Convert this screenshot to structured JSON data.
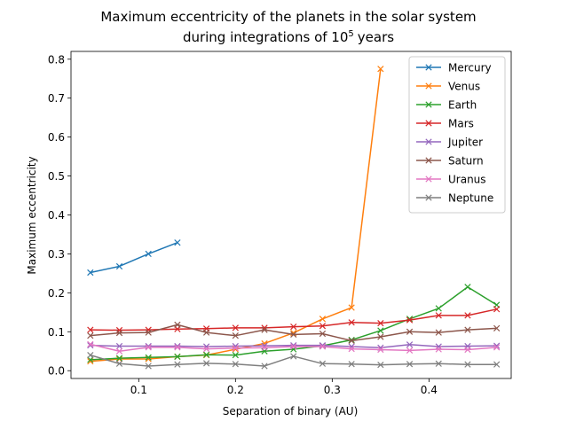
{
  "chart_data": {
    "type": "line",
    "title": "Maximum eccentricity of the planets in the solar system",
    "title_line2_prefix": "during integrations of 10",
    "title_line2_exponent": "5",
    "title_line2_suffix": "years",
    "xlabel": "Separation of binary (AU)",
    "ylabel": "Maximum eccentricity",
    "xlim": [
      0.03,
      0.485
    ],
    "ylim": [
      -0.02,
      0.82
    ],
    "xticks": [
      0.1,
      0.2,
      0.3,
      0.4
    ],
    "xtick_labels": [
      "0.1",
      "0.2",
      "0.3",
      "0.4"
    ],
    "yticks": [
      0.0,
      0.1,
      0.2,
      0.3,
      0.4,
      0.5,
      0.6,
      0.7,
      0.8
    ],
    "ytick_labels": [
      "0.0",
      "0.1",
      "0.2",
      "0.3",
      "0.4",
      "0.5",
      "0.6",
      "0.7",
      "0.8"
    ],
    "grid": false,
    "legend_position": "top-right",
    "marker": "x",
    "series": [
      {
        "name": "Mercury",
        "color": "#1f77b4",
        "x": [
          0.05,
          0.08,
          0.11,
          0.14
        ],
        "y": [
          0.252,
          0.268,
          0.3,
          0.329
        ]
      },
      {
        "name": "Venus",
        "color": "#ff7f0e",
        "x": [
          0.05,
          0.08,
          0.11,
          0.14,
          0.17,
          0.2,
          0.23,
          0.26,
          0.29,
          0.32,
          0.35
        ],
        "y": [
          0.024,
          0.03,
          0.03,
          0.036,
          0.04,
          0.055,
          0.07,
          0.097,
          0.133,
          0.162,
          0.775
        ]
      },
      {
        "name": "Earth",
        "color": "#2ca02c",
        "x": [
          0.05,
          0.08,
          0.11,
          0.14,
          0.17,
          0.2,
          0.23,
          0.26,
          0.29,
          0.32,
          0.35,
          0.38,
          0.41,
          0.44,
          0.47
        ],
        "y": [
          0.028,
          0.032,
          0.034,
          0.036,
          0.041,
          0.04,
          0.05,
          0.055,
          0.064,
          0.079,
          0.103,
          0.133,
          0.16,
          0.215,
          0.169
        ]
      },
      {
        "name": "Mars",
        "color": "#d62728",
        "x": [
          0.05,
          0.08,
          0.11,
          0.14,
          0.17,
          0.2,
          0.23,
          0.26,
          0.29,
          0.32,
          0.35,
          0.38,
          0.41,
          0.44,
          0.47
        ],
        "y": [
          0.105,
          0.104,
          0.105,
          0.107,
          0.108,
          0.11,
          0.11,
          0.113,
          0.115,
          0.124,
          0.122,
          0.13,
          0.142,
          0.142,
          0.158
        ]
      },
      {
        "name": "Jupiter",
        "color": "#9467bd",
        "x": [
          0.05,
          0.08,
          0.11,
          0.14,
          0.17,
          0.2,
          0.23,
          0.26,
          0.29,
          0.32,
          0.35,
          0.38,
          0.41,
          0.44,
          0.47
        ],
        "y": [
          0.065,
          0.063,
          0.063,
          0.063,
          0.062,
          0.063,
          0.064,
          0.065,
          0.065,
          0.062,
          0.059,
          0.067,
          0.062,
          0.063,
          0.064
        ]
      },
      {
        "name": "Saturn",
        "color": "#8c564b",
        "x": [
          0.05,
          0.08,
          0.11,
          0.14,
          0.17,
          0.2,
          0.23,
          0.26,
          0.29,
          0.32,
          0.35,
          0.38,
          0.41,
          0.44,
          0.47
        ],
        "y": [
          0.09,
          0.097,
          0.098,
          0.118,
          0.098,
          0.09,
          0.105,
          0.093,
          0.095,
          0.077,
          0.087,
          0.1,
          0.098,
          0.105,
          0.109
        ]
      },
      {
        "name": "Uranus",
        "color": "#e377c2",
        "x": [
          0.05,
          0.08,
          0.11,
          0.14,
          0.17,
          0.2,
          0.23,
          0.26,
          0.29,
          0.32,
          0.35,
          0.38,
          0.41,
          0.44,
          0.47
        ],
        "y": [
          0.068,
          0.05,
          0.06,
          0.06,
          0.056,
          0.058,
          0.059,
          0.062,
          0.062,
          0.056,
          0.054,
          0.052,
          0.055,
          0.054,
          0.06
        ]
      },
      {
        "name": "Neptune",
        "color": "#7f7f7f",
        "x": [
          0.05,
          0.08,
          0.11,
          0.14,
          0.17,
          0.2,
          0.23,
          0.26,
          0.29,
          0.32,
          0.35,
          0.38,
          0.41,
          0.44,
          0.47
        ],
        "y": [
          0.04,
          0.018,
          0.012,
          0.016,
          0.019,
          0.017,
          0.012,
          0.037,
          0.018,
          0.017,
          0.015,
          0.017,
          0.018,
          0.016,
          0.016
        ]
      }
    ]
  }
}
